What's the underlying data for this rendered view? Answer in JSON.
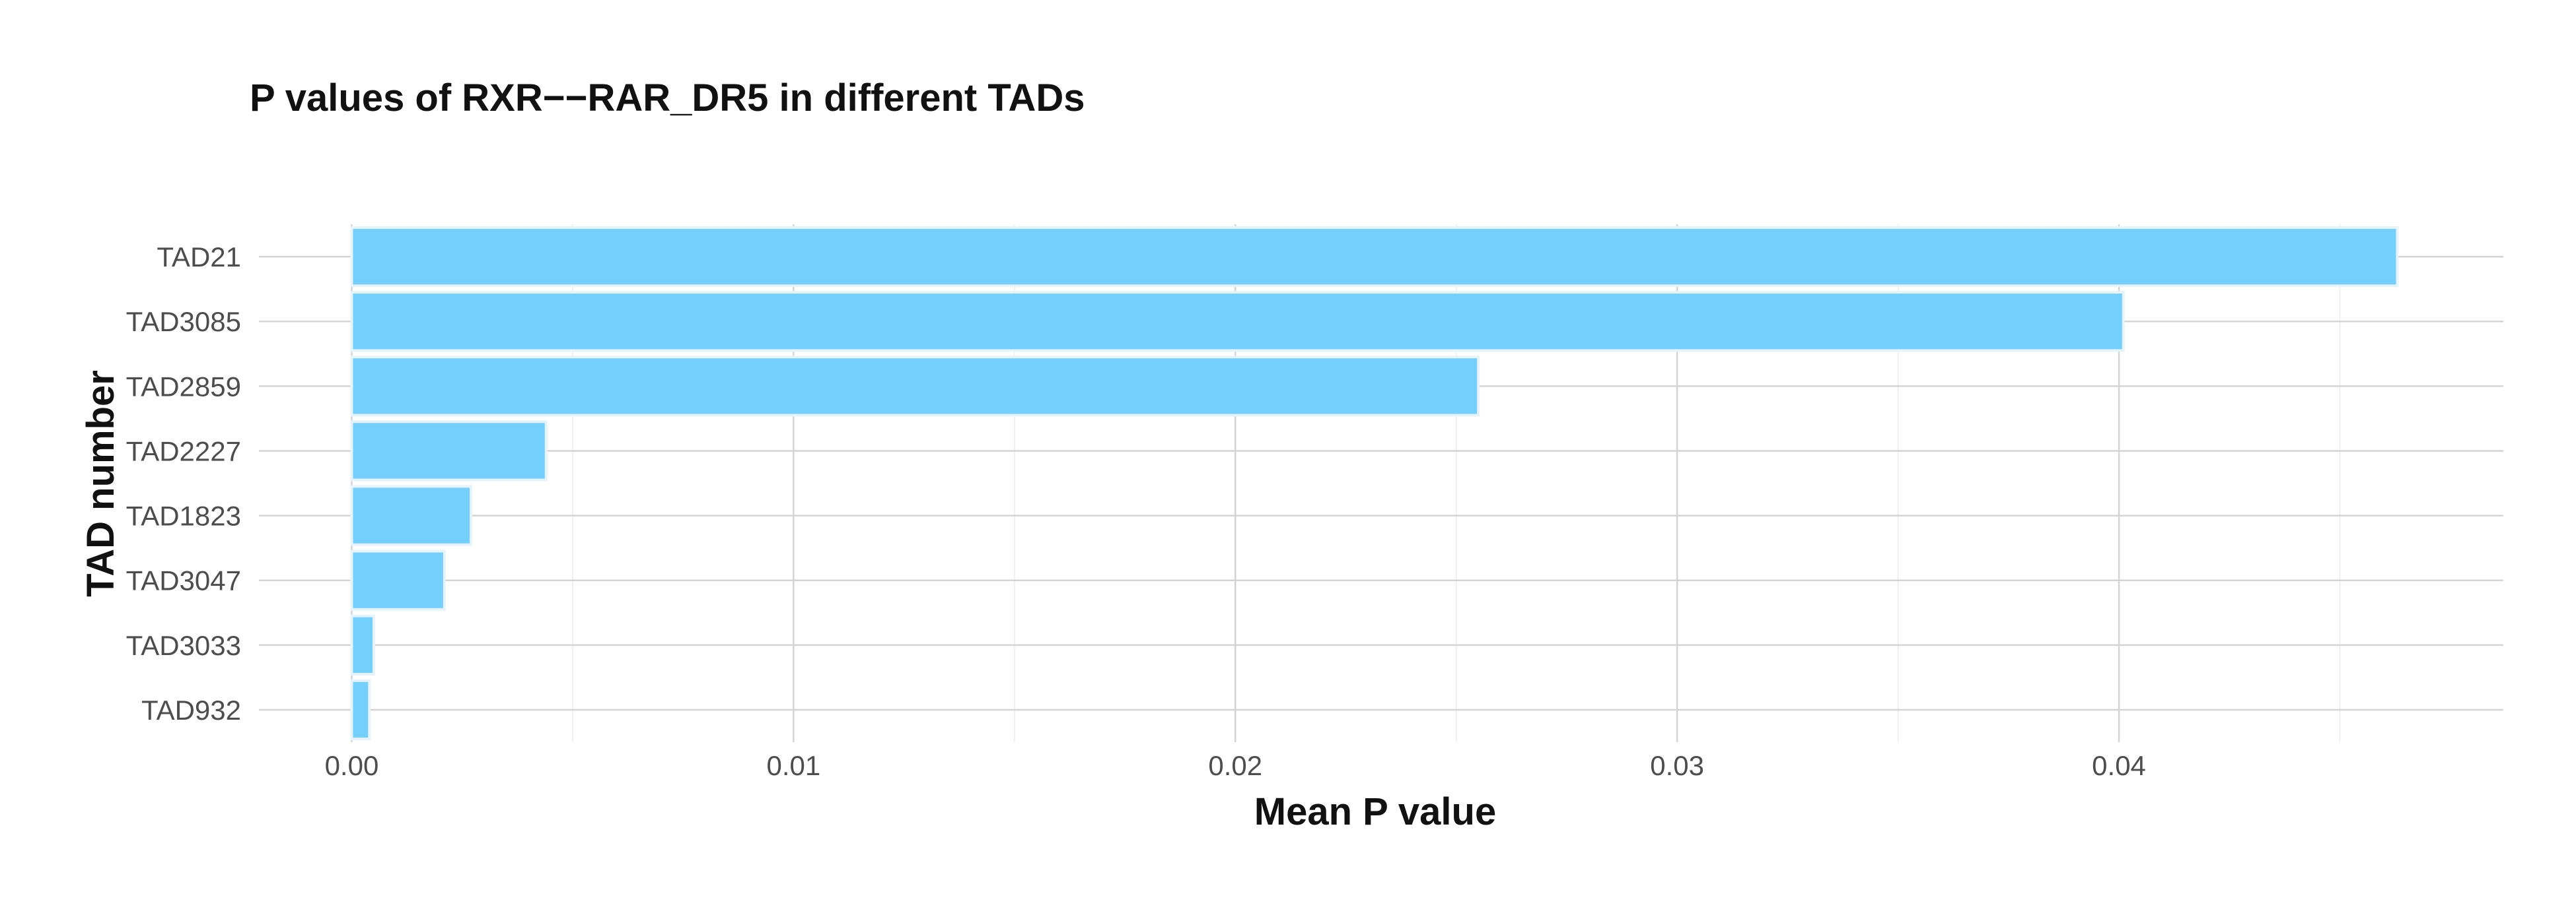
{
  "chart_data": {
    "type": "bar",
    "orientation": "horizontal",
    "title": "P values of RXR−−RAR_DR5 in different TADs",
    "xlabel": "Mean P value",
    "ylabel": "TAD number",
    "categories": [
      "TAD21",
      "TAD3085",
      "TAD2859",
      "TAD2227",
      "TAD1823",
      "TAD3047",
      "TAD3033",
      "TAD932"
    ],
    "values": [
      0.0463,
      0.0401,
      0.0255,
      0.0044,
      0.0027,
      0.0021,
      0.0005,
      0.0004
    ],
    "xlim": [
      -0.0021,
      0.0487
    ],
    "xticks": [
      0.0,
      0.01,
      0.02,
      0.03,
      0.04
    ],
    "xtick_labels": [
      "0.00",
      "0.01",
      "0.02",
      "0.03",
      "0.04"
    ],
    "grid": true,
    "legend": "none",
    "bar_color": "#75CFFD"
  }
}
